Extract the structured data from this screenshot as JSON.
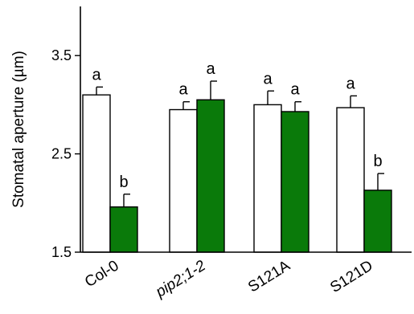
{
  "chart_data": {
    "type": "bar",
    "categories": [
      "Col-0",
      "pip2;1-2",
      "S121A",
      "S121D"
    ],
    "italic_categories": [
      "pip2;1-2"
    ],
    "ylabel": "Stomatal aperture (µm)",
    "ylim": [
      1.5,
      4.0
    ],
    "yticks": [
      "1.5",
      "2.5",
      "3.5"
    ],
    "ytick_values": [
      1.5,
      2.5,
      3.5
    ],
    "grid": false,
    "series": [
      {
        "values": [
          3.1,
          2.95,
          3.0,
          2.97
        ],
        "errors": [
          0.08,
          0.08,
          0.14,
          0.12
        ],
        "labels": [
          "a",
          "a",
          "a",
          "a"
        ],
        "color": "#ffffff"
      },
      {
        "values": [
          1.96,
          3.05,
          2.93,
          2.13
        ],
        "errors": [
          0.13,
          0.19,
          0.1,
          0.17
        ],
        "labels": [
          "b",
          "a",
          "a",
          "b"
        ],
        "color": "#0a7a0a"
      }
    ]
  }
}
